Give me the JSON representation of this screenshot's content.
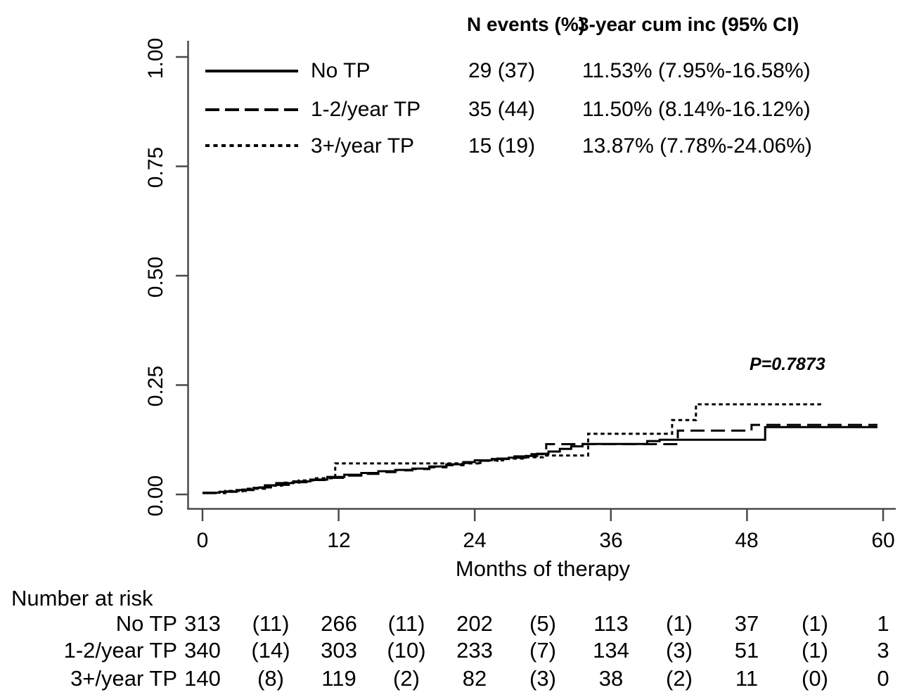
{
  "figure": {
    "p_value": "P=0.7873",
    "x_axis": {
      "title": "Months of therapy",
      "ticks": [
        "0",
        "12",
        "24",
        "36",
        "48",
        "60"
      ]
    },
    "y_axis": {
      "ticks": [
        "0.00",
        "0.25",
        "0.50",
        "0.75",
        "1.00"
      ]
    },
    "legend": {
      "col_events_header": "N events (%)",
      "col_cuminc_header": "3-year cum inc (95% CI)",
      "rows": [
        {
          "label": "No TP",
          "events": "29 (37)",
          "cuminc": "11.53% (7.95%-16.58%)"
        },
        {
          "label": "1-2/year TP",
          "events": "35 (44)",
          "cuminc": "11.50% (8.14%-16.12%)"
        },
        {
          "label": "3+/year TP",
          "events": "15 (19)",
          "cuminc": "13.87% (7.78%-24.06%)"
        }
      ]
    },
    "risk_table": {
      "title": "Number at risk",
      "rows": [
        {
          "label": "No TP",
          "values": [
            "313",
            "(11)",
            "266",
            "(11)",
            "202",
            "(5)",
            "113",
            "(1)",
            "37",
            "(1)",
            "1"
          ]
        },
        {
          "label": "1-2/year TP",
          "values": [
            "340",
            "(14)",
            "303",
            "(10)",
            "233",
            "(7)",
            "134",
            "(3)",
            "51",
            "(1)",
            "3"
          ]
        },
        {
          "label": "3+/year TP",
          "values": [
            "140",
            "(8)",
            "119",
            "(2)",
            "82",
            "(3)",
            "38",
            "(2)",
            "11",
            "(0)",
            "0"
          ]
        }
      ]
    }
  },
  "chart_data": {
    "type": "line",
    "subtype": "cumulative-incidence-step",
    "title": "",
    "xlabel": "Months of therapy",
    "ylabel": "",
    "xlim": [
      0,
      60
    ],
    "ylim": [
      0,
      1
    ],
    "x_ticks": [
      0,
      12,
      24,
      36,
      48,
      60
    ],
    "y_ticks": [
      0,
      0.25,
      0.5,
      0.75,
      1
    ],
    "grid": false,
    "legend_position": "top-left-inside",
    "p_value": 0.7873,
    "axis_color": "#4a4a4a",
    "curve_color": "#000000",
    "series": [
      {
        "name": "No TP",
        "line_style": "solid",
        "n_events": 29,
        "events_pct": 37,
        "cum_inc_3yr_pct": 11.53,
        "ci_95": "7.95%-16.58%",
        "points": [
          [
            0,
            0.004
          ],
          [
            1.5,
            0.006
          ],
          [
            3,
            0.01
          ],
          [
            4.5,
            0.015
          ],
          [
            5.5,
            0.021
          ],
          [
            6.5,
            0.026
          ],
          [
            8,
            0.03
          ],
          [
            9.5,
            0.034
          ],
          [
            11,
            0.04
          ],
          [
            12.5,
            0.045
          ],
          [
            14,
            0.049
          ],
          [
            15.5,
            0.053
          ],
          [
            17,
            0.056
          ],
          [
            18.5,
            0.059
          ],
          [
            20,
            0.064
          ],
          [
            21.5,
            0.069
          ],
          [
            23,
            0.074
          ],
          [
            24,
            0.078
          ],
          [
            25.5,
            0.081
          ],
          [
            27,
            0.084
          ],
          [
            28.5,
            0.088
          ],
          [
            29.5,
            0.093
          ],
          [
            30.5,
            0.098
          ],
          [
            31.5,
            0.104
          ],
          [
            32.5,
            0.11
          ],
          [
            33.5,
            0.1153
          ],
          [
            39.2,
            0.122
          ],
          [
            40.3,
            0.125
          ],
          [
            49.6,
            0.154
          ],
          [
            59.5,
            0.154
          ]
        ]
      },
      {
        "name": "1-2/year TP",
        "line_style": "dashed",
        "n_events": 35,
        "events_pct": 44,
        "cum_inc_3yr_pct": 11.5,
        "ci_95": "8.14%-16.12%",
        "points": [
          [
            0,
            0.003
          ],
          [
            2,
            0.007
          ],
          [
            3.5,
            0.011
          ],
          [
            5,
            0.016
          ],
          [
            6.5,
            0.022
          ],
          [
            8,
            0.028
          ],
          [
            9.5,
            0.033
          ],
          [
            11,
            0.038
          ],
          [
            12.5,
            0.043
          ],
          [
            14,
            0.047
          ],
          [
            15.5,
            0.051
          ],
          [
            17,
            0.055
          ],
          [
            18.5,
            0.058
          ],
          [
            20,
            0.062
          ],
          [
            21.5,
            0.067
          ],
          [
            23,
            0.072
          ],
          [
            24.5,
            0.077
          ],
          [
            26,
            0.082
          ],
          [
            27.5,
            0.087
          ],
          [
            29,
            0.092
          ],
          [
            30.3,
            0.115
          ],
          [
            41.9,
            0.146
          ],
          [
            48.4,
            0.159
          ],
          [
            59.5,
            0.159
          ]
        ]
      },
      {
        "name": "3+/year TP",
        "line_style": "dotted",
        "n_events": 15,
        "events_pct": 19,
        "cum_inc_3yr_pct": 13.87,
        "ci_95": "7.78%-24.06%",
        "points": [
          [
            0,
            0.004
          ],
          [
            2,
            0.008
          ],
          [
            4,
            0.013
          ],
          [
            5.5,
            0.02
          ],
          [
            7,
            0.027
          ],
          [
            8.5,
            0.032
          ],
          [
            10,
            0.037
          ],
          [
            11.7,
            0.071
          ],
          [
            23.5,
            0.071
          ],
          [
            24.5,
            0.078
          ],
          [
            26.5,
            0.082
          ],
          [
            28.5,
            0.085
          ],
          [
            30,
            0.089
          ],
          [
            34,
            0.1387
          ],
          [
            41.4,
            0.17
          ],
          [
            43.5,
            0.206
          ],
          [
            54.7,
            0.206
          ]
        ]
      }
    ],
    "risk_table_x_positions": {
      "counts_at_months": [
        0,
        12,
        24,
        36,
        48,
        60
      ],
      "events_between_at_months": [
        6,
        18,
        30,
        42,
        54
      ]
    }
  }
}
